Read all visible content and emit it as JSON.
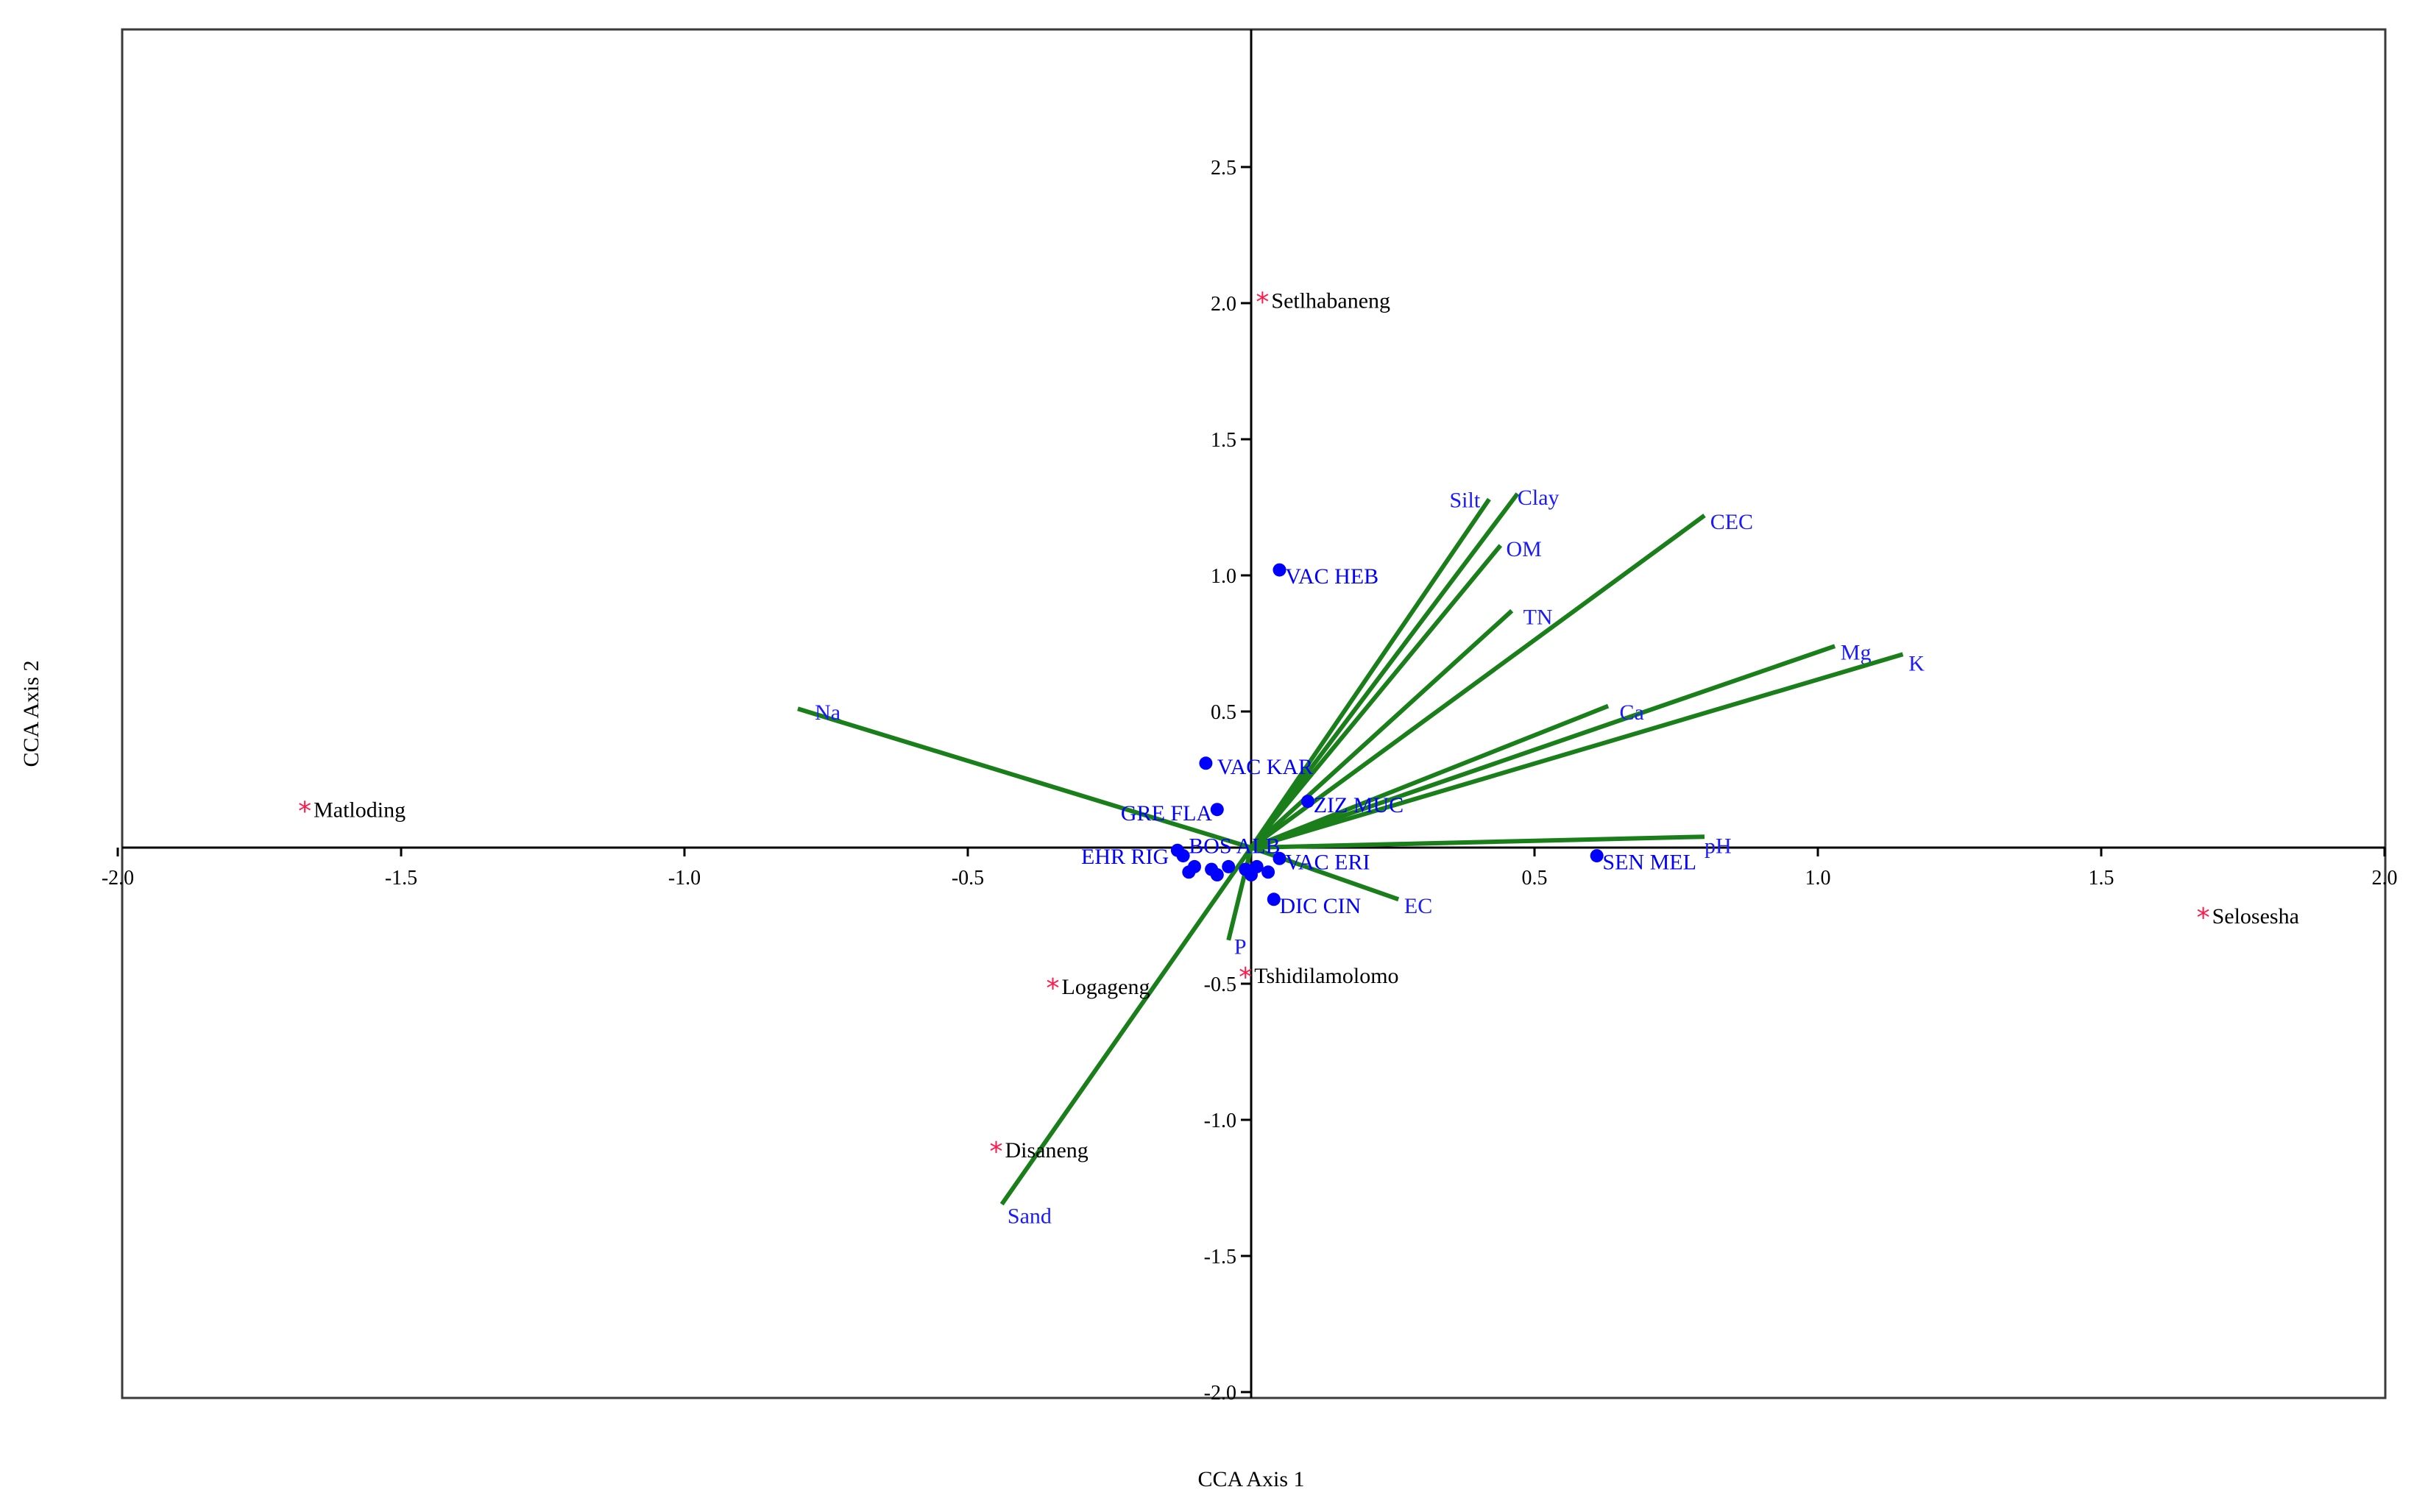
{
  "colors": {
    "vector": "#1a7f1a",
    "vector_label": "#1a1aff",
    "species": "#0000ff",
    "site_marker": "#ff1a4a",
    "site_label": "#000000"
  },
  "chart_data": {
    "type": "scatter",
    "subtype": "CCA ordination biplot",
    "title": "",
    "xlabel": "CCA Axis 1",
    "ylabel": "CCA Axis 2",
    "xlim": [
      -2.0,
      2.0
    ],
    "ylim": [
      -2.0,
      3.0
    ],
    "xticks": [
      -2.0,
      -1.5,
      -1.0,
      -0.5,
      0.5,
      1.0,
      1.5,
      2.0
    ],
    "xtick_labels": [
      "-2.0",
      "-1.5",
      "-1.0",
      "-0.5",
      "0.5",
      "1.0",
      "1.5",
      "2.0"
    ],
    "yticks": [
      2.5,
      2.0,
      1.5,
      1.0,
      0.5,
      -0.5,
      -1.0,
      -1.5,
      -2.0
    ],
    "ytick_labels": [
      "2.5",
      "2.0",
      "1.5",
      "1.0",
      "0.5",
      "-0.5",
      "-1.0",
      "-1.5",
      "-2.0"
    ],
    "grid": false,
    "vectors": [
      {
        "name": "Na",
        "x": -0.8,
        "y": 0.51,
        "label_x": -0.77,
        "label_y": 0.47
      },
      {
        "name": "Silt",
        "x": 0.42,
        "y": 1.28,
        "label_x": 0.35,
        "label_y": 1.25
      },
      {
        "name": "Clay",
        "x": 0.47,
        "y": 1.3,
        "label_x": 0.47,
        "label_y": 1.26
      },
      {
        "name": "OM",
        "x": 0.44,
        "y": 1.11,
        "label_x": 0.45,
        "label_y": 1.07
      },
      {
        "name": "TN",
        "x": 0.46,
        "y": 0.87,
        "label_x": 0.48,
        "label_y": 0.82
      },
      {
        "name": "CEC",
        "x": 0.8,
        "y": 1.22,
        "label_x": 0.81,
        "label_y": 1.17
      },
      {
        "name": "Mg",
        "x": 1.03,
        "y": 0.74,
        "label_x": 1.04,
        "label_y": 0.69
      },
      {
        "name": "K",
        "x": 1.15,
        "y": 0.71,
        "label_x": 1.16,
        "label_y": 0.65
      },
      {
        "name": "Ca",
        "x": 0.63,
        "y": 0.52,
        "label_x": 0.65,
        "label_y": 0.47
      },
      {
        "name": "pH",
        "x": 0.8,
        "y": 0.04,
        "label_x": 0.8,
        "label_y": -0.02
      },
      {
        "name": "EC",
        "x": 0.26,
        "y": -0.19,
        "label_x": 0.27,
        "label_y": -0.24
      },
      {
        "name": "P",
        "x": -0.04,
        "y": -0.34,
        "label_x": -0.03,
        "label_y": -0.39
      },
      {
        "name": "Sand",
        "x": -0.44,
        "y": -1.31,
        "label_x": -0.43,
        "label_y": -1.38
      }
    ],
    "species": [
      {
        "name": "VAC HEB",
        "x": 0.05,
        "y": 1.02,
        "label_x": 0.06,
        "label_y": 0.97
      },
      {
        "name": "VAC KAR",
        "x": -0.08,
        "y": 0.31,
        "label_x": -0.06,
        "label_y": 0.27
      },
      {
        "name": "GRE FLA",
        "x": -0.06,
        "y": 0.14,
        "label_x": -0.23,
        "label_y": 0.1
      },
      {
        "name": "ZIZ MUC",
        "x": 0.1,
        "y": 0.17,
        "label_x": 0.11,
        "label_y": 0.13
      },
      {
        "name": "EHR RIG",
        "x": -0.13,
        "y": -0.01,
        "label_x": -0.3,
        "label_y": -0.06
      },
      {
        "name": "BOS ALB",
        "x": -0.12,
        "y": -0.03,
        "label_x": -0.11,
        "label_y": -0.02
      },
      {
        "name": "VAC ERI",
        "x": 0.05,
        "y": -0.04,
        "label_x": 0.06,
        "label_y": -0.08
      },
      {
        "name": "DIC CIN",
        "x": 0.04,
        "y": -0.19,
        "label_x": 0.05,
        "label_y": -0.24
      },
      {
        "name": "SEN MEL",
        "x": 0.61,
        "y": -0.03,
        "label_x": 0.62,
        "label_y": -0.08
      }
    ],
    "species_cluster": [
      {
        "x": -0.1,
        "y": -0.07
      },
      {
        "x": -0.07,
        "y": -0.08
      },
      {
        "x": -0.04,
        "y": -0.07
      },
      {
        "x": -0.01,
        "y": -0.08
      },
      {
        "x": 0.01,
        "y": -0.07
      },
      {
        "x": 0.03,
        "y": -0.09
      },
      {
        "x": -0.11,
        "y": -0.09
      },
      {
        "x": -0.06,
        "y": -0.1
      },
      {
        "x": 0.0,
        "y": -0.1
      }
    ],
    "sites": [
      {
        "name": "Setlhabaneng",
        "x": 0.02,
        "y": 2.02
      },
      {
        "name": "Matloding",
        "x": -1.67,
        "y": 0.15
      },
      {
        "name": "Selosesha",
        "x": 1.68,
        "y": -0.24
      },
      {
        "name": "Tshidilamolomo",
        "x": -0.01,
        "y": -0.46
      },
      {
        "name": "Logageng",
        "x": -0.35,
        "y": -0.5
      },
      {
        "name": "Disaneng",
        "x": -0.45,
        "y": -1.1
      }
    ]
  }
}
